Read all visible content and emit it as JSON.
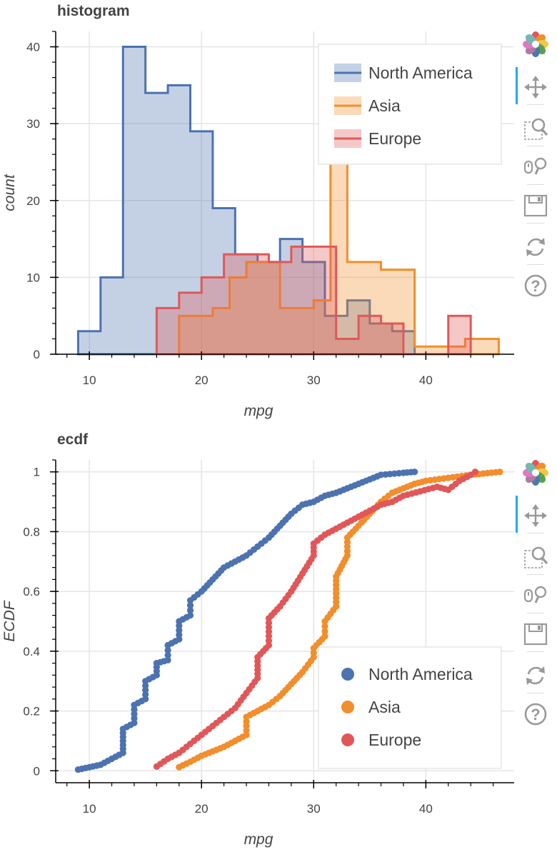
{
  "toolbar_tools": [
    {
      "name": "bokeh-logo-icon"
    },
    {
      "name": "pan-icon",
      "active": true
    },
    {
      "name": "box-zoom-icon"
    },
    {
      "name": "wheel-zoom-icon"
    },
    {
      "name": "save-icon"
    },
    {
      "name": "reset-icon"
    },
    {
      "name": "help-icon"
    }
  ],
  "colors": {
    "North America": "#4c72b0",
    "Asia": "#f28e2b",
    "Europe": "#e15759",
    "grid": "#e5e5e5",
    "text": "#444444"
  },
  "chart_data": [
    {
      "type": "histogram",
      "title": "histogram",
      "xlabel": "mpg",
      "ylabel": "count",
      "xlim": [
        7,
        48
      ],
      "ylim": [
        0,
        42
      ],
      "xticks": [
        10,
        20,
        30,
        40
      ],
      "yticks": [
        0,
        10,
        20,
        30,
        40
      ],
      "grid": true,
      "legend_position": "top-right",
      "series": [
        {
          "name": "North America",
          "edges": [
            9,
            11,
            13,
            15,
            17,
            19,
            21,
            23,
            25,
            27,
            29,
            31,
            33,
            35,
            37,
            39
          ],
          "counts": [
            3,
            10,
            40,
            34,
            35,
            29,
            19,
            13,
            12,
            15,
            12,
            5,
            7,
            4,
            3
          ]
        },
        {
          "name": "Asia",
          "edges": [
            18,
            19.5,
            21,
            22.5,
            24,
            25.5,
            27,
            28.5,
            30,
            31.5,
            33,
            34.5,
            36,
            37.5,
            39,
            40.5,
            42,
            43.5,
            45,
            46.5
          ],
          "counts": [
            5,
            5,
            6,
            10,
            12,
            12,
            6,
            6,
            7,
            25,
            12,
            12,
            11,
            11,
            1,
            1,
            1,
            2,
            2
          ]
        },
        {
          "name": "Europe",
          "edges": [
            16,
            18,
            20,
            22,
            24,
            26,
            28,
            30,
            32,
            34,
            36,
            38,
            40,
            42,
            44
          ],
          "counts": [
            6,
            8,
            10,
            13,
            13,
            12,
            14,
            14,
            2,
            5,
            4,
            0,
            0,
            5
          ]
        }
      ]
    },
    {
      "type": "scatter",
      "title": "ecdf",
      "xlabel": "mpg",
      "ylabel": "ECDF",
      "xlim": [
        7,
        48
      ],
      "ylim": [
        -0.04,
        1.04
      ],
      "xticks": [
        10,
        20,
        30,
        40
      ],
      "yticks": [
        0,
        0.2,
        0.4,
        0.6,
        0.8,
        1
      ],
      "ytick_labels": [
        "0",
        "0.2",
        "0.4",
        "0.6",
        "0.8",
        "1"
      ],
      "grid": true,
      "legend_position": "bottom-right",
      "series": [
        {
          "name": "North America",
          "curve": [
            [
              9,
              0.004
            ],
            [
              10,
              0.012
            ],
            [
              11,
              0.02
            ],
            [
              12,
              0.04
            ],
            [
              13,
              0.06
            ],
            [
              13,
              0.14
            ],
            [
              14,
              0.16
            ],
            [
              14,
              0.22
            ],
            [
              15,
              0.24
            ],
            [
              15,
              0.3
            ],
            [
              16,
              0.32
            ],
            [
              16,
              0.36
            ],
            [
              17,
              0.37
            ],
            [
              17,
              0.42
            ],
            [
              18,
              0.44
            ],
            [
              18,
              0.5
            ],
            [
              19,
              0.52
            ],
            [
              19,
              0.57
            ],
            [
              20,
              0.6
            ],
            [
              21,
              0.64
            ],
            [
              22,
              0.68
            ],
            [
              23,
              0.7
            ],
            [
              24,
              0.72
            ],
            [
              25,
              0.75
            ],
            [
              26,
              0.78
            ],
            [
              27,
              0.82
            ],
            [
              28,
              0.86
            ],
            [
              29,
              0.89
            ],
            [
              30,
              0.9
            ],
            [
              31,
              0.92
            ],
            [
              32,
              0.93
            ],
            [
              33,
              0.945
            ],
            [
              34,
              0.96
            ],
            [
              35,
              0.975
            ],
            [
              36,
              0.99
            ],
            [
              38,
              0.997
            ],
            [
              39,
              1.0
            ]
          ]
        },
        {
          "name": "Asia",
          "curve": [
            [
              18,
              0.012
            ],
            [
              19,
              0.03
            ],
            [
              20,
              0.05
            ],
            [
              21,
              0.065
            ],
            [
              22,
              0.08
            ],
            [
              23,
              0.1
            ],
            [
              24,
              0.12
            ],
            [
              24,
              0.18
            ],
            [
              25,
              0.2
            ],
            [
              26,
              0.22
            ],
            [
              27,
              0.25
            ],
            [
              28,
              0.29
            ],
            [
              29,
              0.33
            ],
            [
              30,
              0.38
            ],
            [
              30,
              0.41
            ],
            [
              31,
              0.45
            ],
            [
              31,
              0.5
            ],
            [
              32,
              0.55
            ],
            [
              32,
              0.65
            ],
            [
              33,
              0.72
            ],
            [
              33,
              0.78
            ],
            [
              34,
              0.82
            ],
            [
              35,
              0.86
            ],
            [
              36,
              0.9
            ],
            [
              37,
              0.93
            ],
            [
              38,
              0.945
            ],
            [
              39,
              0.96
            ],
            [
              40,
              0.97
            ],
            [
              42,
              0.98
            ],
            [
              44,
              0.99
            ],
            [
              46.6,
              1.0
            ]
          ]
        },
        {
          "name": "Europe",
          "curve": [
            [
              16,
              0.014
            ],
            [
              17,
              0.04
            ],
            [
              18,
              0.06
            ],
            [
              19,
              0.09
            ],
            [
              20,
              0.12
            ],
            [
              21,
              0.15
            ],
            [
              22,
              0.18
            ],
            [
              23,
              0.21
            ],
            [
              24,
              0.26
            ],
            [
              25,
              0.31
            ],
            [
              25,
              0.38
            ],
            [
              26,
              0.42
            ],
            [
              26,
              0.51
            ],
            [
              27,
              0.55
            ],
            [
              28,
              0.6
            ],
            [
              29,
              0.66
            ],
            [
              30,
              0.72
            ],
            [
              30,
              0.76
            ],
            [
              31,
              0.79
            ],
            [
              32,
              0.81
            ],
            [
              33,
              0.83
            ],
            [
              34,
              0.85
            ],
            [
              35,
              0.87
            ],
            [
              36,
              0.89
            ],
            [
              37,
              0.9
            ],
            [
              38,
              0.92
            ],
            [
              41,
              0.95
            ],
            [
              42,
              0.94
            ],
            [
              43,
              0.97
            ],
            [
              44,
              0.99
            ],
            [
              44.4,
              1.0
            ]
          ]
        }
      ]
    }
  ]
}
